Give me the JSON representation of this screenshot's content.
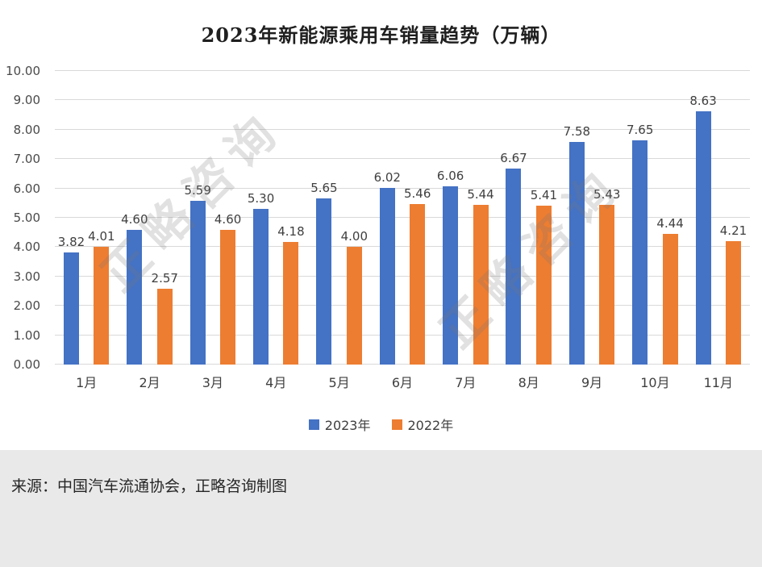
{
  "chart_data": {
    "type": "bar",
    "title": "2023年新能源乘用车销量趋势（万辆）",
    "categories": [
      "1月",
      "2月",
      "3月",
      "4月",
      "5月",
      "6月",
      "7月",
      "8月",
      "9月",
      "10月",
      "11月"
    ],
    "series": [
      {
        "name": "2023年",
        "color": "#4472C4",
        "values": [
          3.82,
          4.6,
          5.59,
          5.3,
          5.65,
          6.02,
          6.06,
          6.67,
          7.58,
          7.65,
          8.63
        ]
      },
      {
        "name": "2022年",
        "color": "#ED7D31",
        "values": [
          4.01,
          2.57,
          4.6,
          4.18,
          4.0,
          5.46,
          5.44,
          5.41,
          5.43,
          4.44,
          4.21
        ]
      }
    ],
    "xlabel": "",
    "ylabel": "",
    "ylim": [
      0,
      10
    ],
    "ytick_interval": 1,
    "ytick_decimals": 2,
    "value_label_decimals": 2,
    "grid": true,
    "legend_position": "bottom"
  },
  "watermark": {
    "text": "正略咨询"
  },
  "footer": {
    "source": "来源：中国汽车流通协会，正略咨询制图"
  },
  "colors": {
    "grid": "#D9D9D9",
    "axis_text": "#4A4A4A",
    "footer_bg": "#E9E9E9",
    "series_2023": "#4472C4",
    "series_2022": "#ED7D31"
  }
}
